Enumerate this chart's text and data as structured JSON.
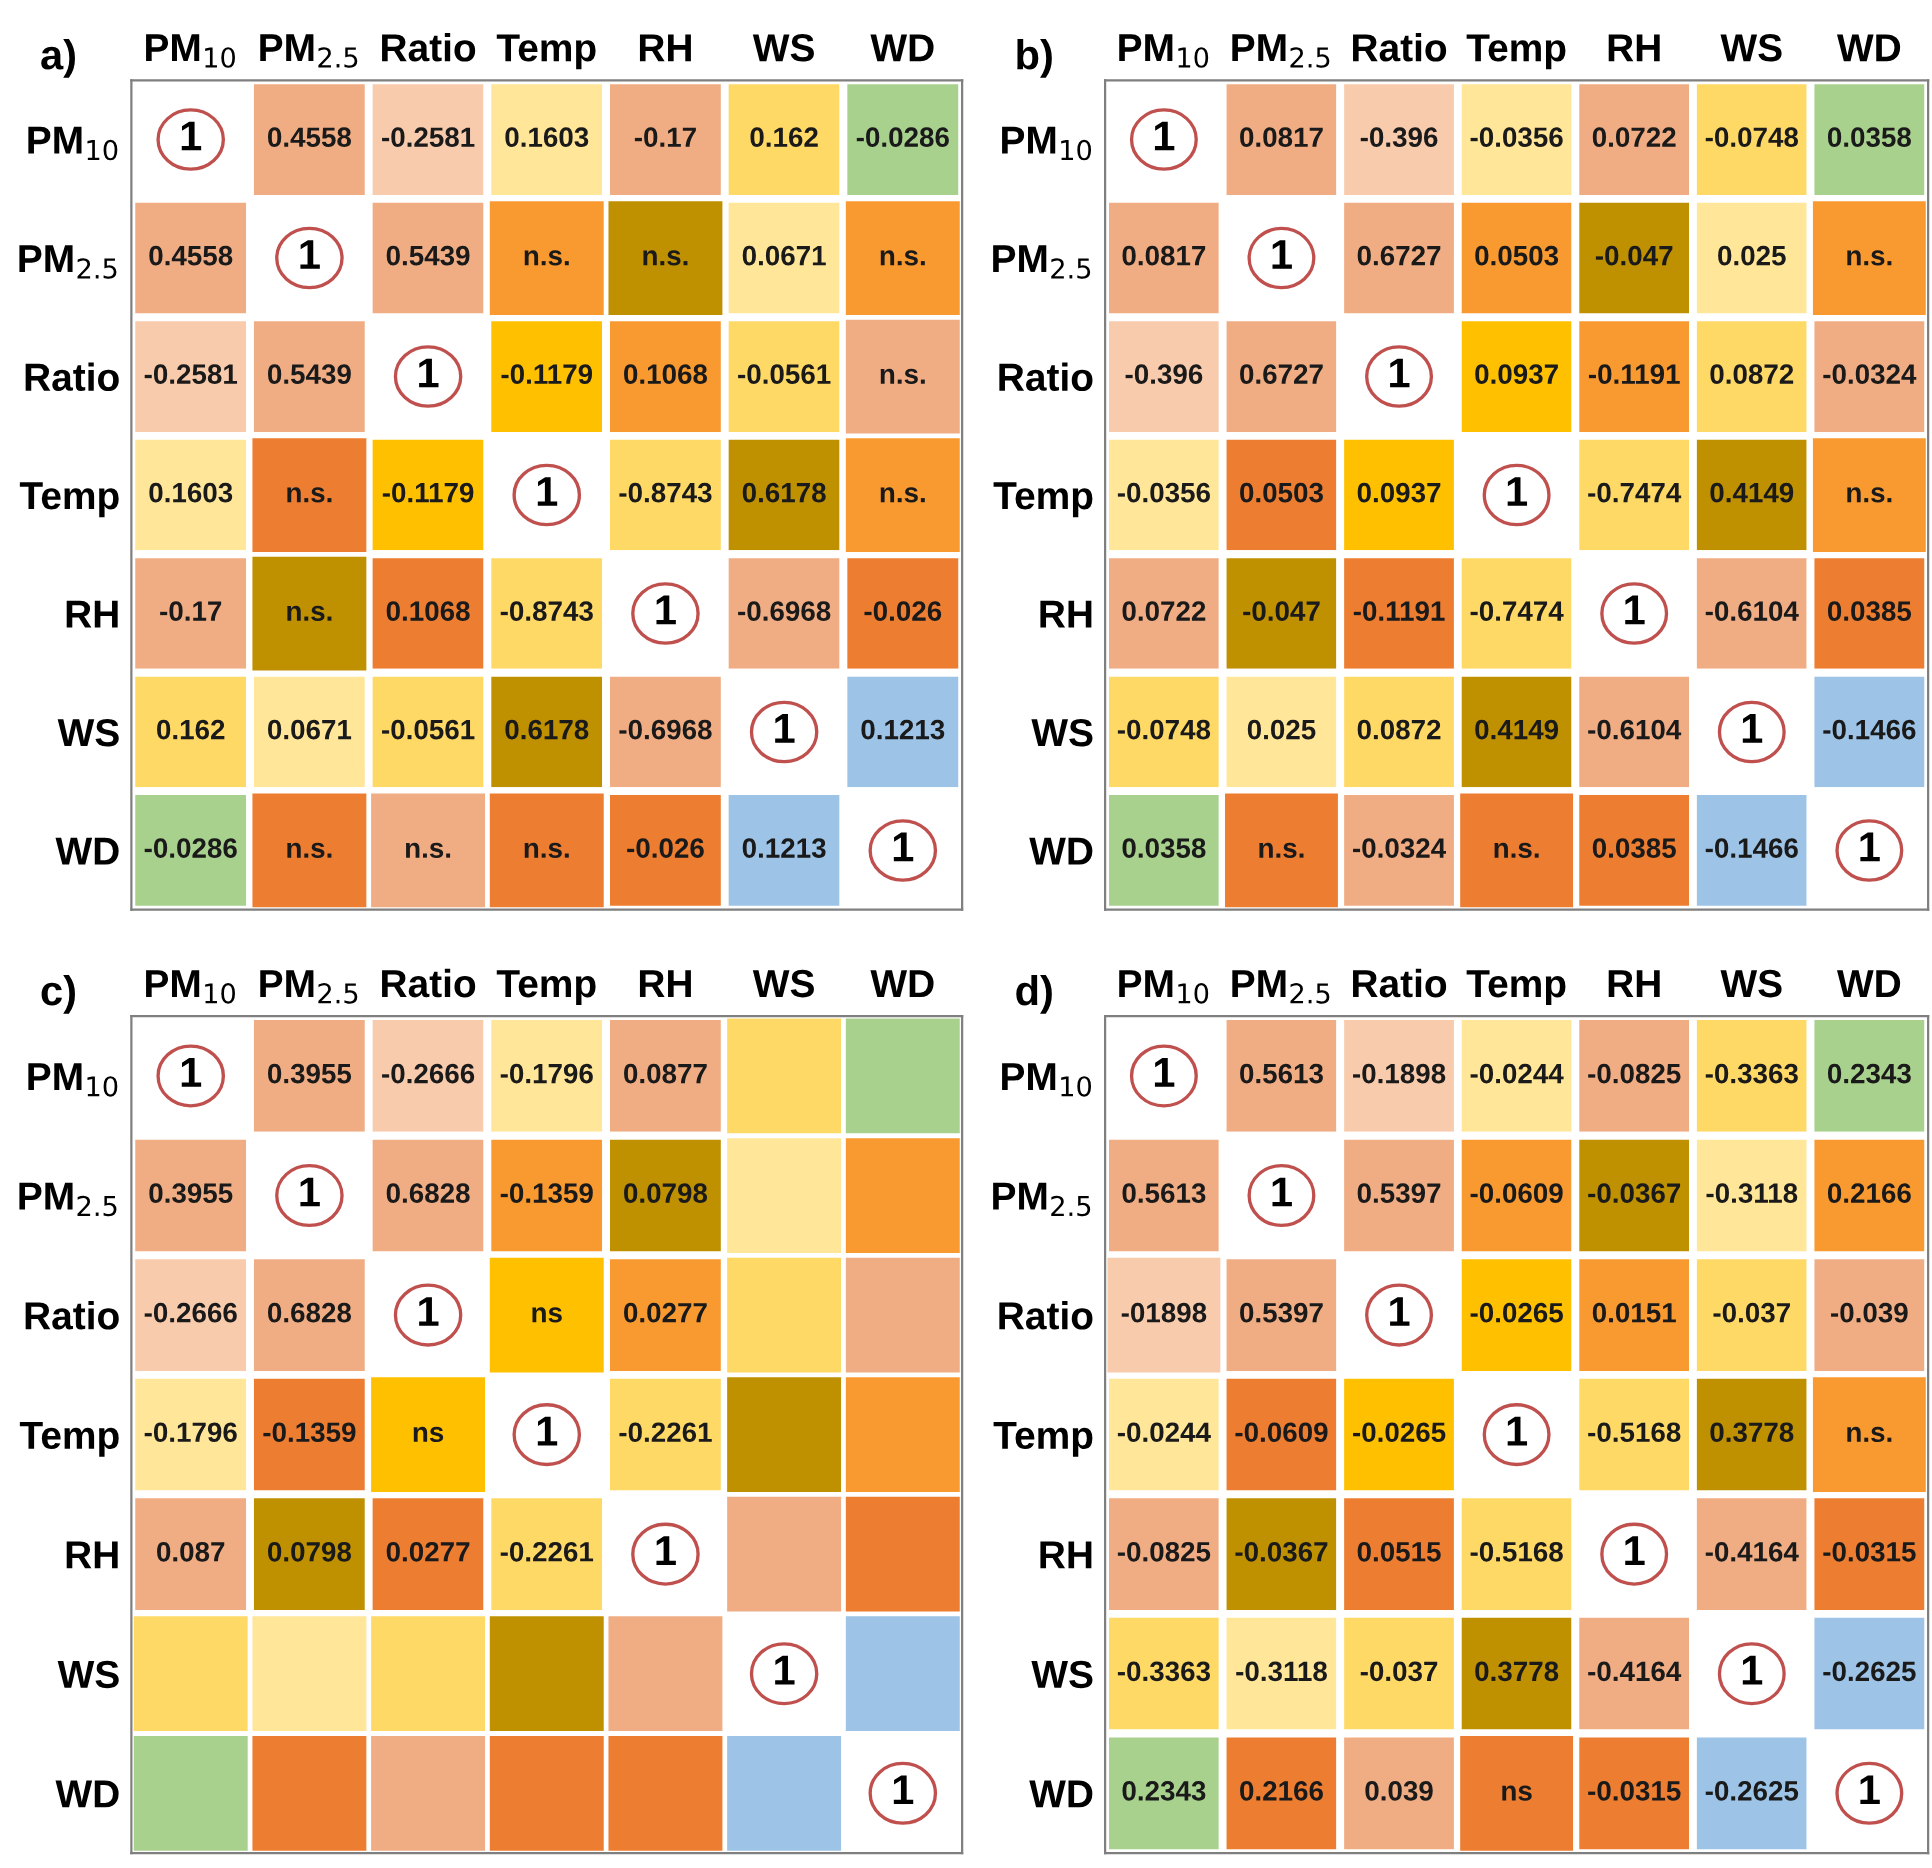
{
  "chart_data": [
    {
      "type": "heatmap",
      "title": "a)",
      "categories": [
        "PM$_{10}$",
        "PM$_{2.5}$",
        "Ratio",
        "Temp",
        "RH",
        "WS",
        "WD"
      ],
      "y_categories": [
        "PM$_{10}$",
        "PM$_{2.5}$",
        "Ratio",
        "Temp",
        "RH",
        "WS",
        "WD"
      ],
      "cells": [
        [
          1,
          0.4558,
          -0.2581,
          0.1603,
          -0.17,
          0.162,
          -0.0286
        ],
        [
          0.4558,
          1,
          0.5439,
          null,
          null,
          0.0671,
          null
        ],
        [
          -0.2581,
          0.5439,
          1,
          -0.1179,
          0.1068,
          -0.0561,
          null
        ],
        [
          0.1603,
          null,
          -0.1179,
          1,
          -0.8743,
          0.6178,
          null
        ],
        [
          -0.17,
          null,
          0.1068,
          -0.8743,
          1,
          -0.6968,
          -0.026
        ],
        [
          0.162,
          0.0671,
          -0.0561,
          0.6178,
          -0.6968,
          1,
          0.1213
        ],
        [
          -0.0286,
          null,
          null,
          null,
          -0.026,
          0.1213,
          1
        ]
      ],
      "cell_labels": [
        [
          "1",
          "0.4558",
          "-0.2581",
          "0.1603",
          "-0.17",
          "0.162",
          "-0.0286"
        ],
        [
          "0.4558",
          "1",
          "0.5439",
          "n.s.",
          "n.s.",
          "0.0671",
          "n.s."
        ],
        [
          "-0.2581",
          "0.5439",
          "1",
          "-0.1179",
          "0.1068",
          "-0.0561",
          "n.s."
        ],
        [
          "0.1603",
          "n.s.",
          "-0.1179",
          "1",
          "-0.8743",
          "0.6178",
          "n.s."
        ],
        [
          "-0.17",
          "n.s.",
          "0.1068",
          "-0.8743",
          "1",
          "-0.6968",
          "-0.026"
        ],
        [
          "0.162",
          "0.0671",
          "-0.0561",
          "0.6178",
          "-0.6968",
          "1",
          "0.1213"
        ],
        [
          "-0.0286",
          "n.s.",
          "n.s.",
          "n.s.",
          "-0.026",
          "0.1213",
          "1"
        ]
      ],
      "colors": [
        [
          null,
          "#f0ad84",
          "#f8cbad",
          "#ffe699",
          "#f0ad84",
          "#ffd966",
          "#a9d18e"
        ],
        [
          "#f0ad84",
          null,
          "#f0ad84",
          "#f99a30",
          "#bf9000",
          "#ffe699",
          "#f99a30"
        ],
        [
          "#f8cbad",
          "#f0ad84",
          null,
          "#ffc000",
          "#f99a30",
          "#ffd966",
          "#f0ad84"
        ],
        [
          "#ffe699",
          "#ed7d31",
          "#ffc000",
          null,
          "#ffd966",
          "#bf9000",
          "#f99a30"
        ],
        [
          "#f0ad84",
          "#bf9000",
          "#ed7d31",
          "#ffd966",
          null,
          "#f0ad84",
          "#ed7d31"
        ],
        [
          "#ffd966",
          "#ffe699",
          "#ffd966",
          "#bf9000",
          "#f0ad84",
          null,
          "#9dc3e6"
        ],
        [
          "#a9d18e",
          "#ed7d31",
          "#f0ad84",
          "#ed7d31",
          "#ed7d31",
          "#9dc3e6",
          null
        ]
      ]
    },
    {
      "type": "heatmap",
      "title": "b)",
      "categories": [
        "PM$_{10}$",
        "PM$_{2.5}$",
        "Ratio",
        "Temp",
        "RH",
        "WS",
        "WD"
      ],
      "y_categories": [
        "PM$_{10}$",
        "PM$_{2.5}$",
        "Ratio",
        "Temp",
        "RH",
        "WS",
        "WD"
      ],
      "cells": [
        [
          1,
          0.0817,
          -0.396,
          -0.0356,
          0.0722,
          -0.0748,
          0.0358
        ],
        [
          0.0817,
          1,
          0.6727,
          0.0503,
          -0.047,
          0.025,
          null
        ],
        [
          -0.396,
          0.6727,
          1,
          0.0937,
          -0.1191,
          0.0872,
          -0.0324
        ],
        [
          -0.0356,
          0.0503,
          0.0937,
          1,
          -0.7474,
          0.4149,
          null
        ],
        [
          0.0722,
          -0.047,
          -0.1191,
          -0.7474,
          1,
          -0.6104,
          0.0385
        ],
        [
          -0.0748,
          0.025,
          0.0872,
          0.4149,
          -0.6104,
          1,
          -0.1466
        ],
        [
          0.0358,
          null,
          -0.0324,
          null,
          0.0385,
          -0.1466,
          1
        ]
      ],
      "cell_labels": [
        [
          "1",
          "0.0817",
          "-0.396",
          "-0.0356",
          "0.0722",
          "-0.0748",
          "0.0358"
        ],
        [
          "0.0817",
          "1",
          "0.6727",
          "0.0503",
          "-0.047",
          "0.025",
          "n.s."
        ],
        [
          "-0.396",
          "0.6727",
          "1",
          "0.0937",
          "-0.1191",
          "0.0872",
          "-0.0324"
        ],
        [
          "-0.0356",
          "0.0503",
          "0.0937",
          "1",
          "-0.7474",
          "0.4149",
          "n.s."
        ],
        [
          "0.0722",
          "-0.047",
          "-0.1191",
          "-0.7474",
          "1",
          "-0.6104",
          "0.0385"
        ],
        [
          "-0.0748",
          "0.025",
          "0.0872",
          "0.4149",
          "-0.6104",
          "1",
          "-0.1466"
        ],
        [
          "0.0358",
          "n.s.",
          "-0.0324",
          "n.s.",
          "0.0385",
          "-0.1466",
          "1"
        ]
      ],
      "colors": [
        [
          null,
          "#f0ad84",
          "#f8cbad",
          "#ffe699",
          "#f0ad84",
          "#ffd966",
          "#a9d18e"
        ],
        [
          "#f0ad84",
          null,
          "#f0ad84",
          "#f99a30",
          "#bf9000",
          "#ffe699",
          "#f99a30"
        ],
        [
          "#f8cbad",
          "#f0ad84",
          null,
          "#ffc000",
          "#f99a30",
          "#ffd966",
          "#f0ad84"
        ],
        [
          "#ffe699",
          "#ed7d31",
          "#ffc000",
          null,
          "#ffd966",
          "#bf9000",
          "#f99a30"
        ],
        [
          "#f0ad84",
          "#bf9000",
          "#ed7d31",
          "#ffd966",
          null,
          "#f0ad84",
          "#ed7d31"
        ],
        [
          "#ffd966",
          "#ffe699",
          "#ffd966",
          "#bf9000",
          "#f0ad84",
          null,
          "#9dc3e6"
        ],
        [
          "#a9d18e",
          "#ed7d31",
          "#f0ad84",
          "#ed7d31",
          "#ed7d31",
          "#9dc3e6",
          null
        ]
      ]
    },
    {
      "type": "heatmap",
      "title": "c)",
      "categories": [
        "PM$_{10}$",
        "PM$_{2.5}$",
        "Ratio",
        "Temp",
        "RH",
        "WS",
        "WD"
      ],
      "y_categories": [
        "PM$_{10}$",
        "PM$_{2.5}$",
        "Ratio",
        "Temp",
        "RH",
        "WS",
        "WD"
      ],
      "cells": [
        [
          1,
          0.3955,
          -0.2666,
          -0.1796,
          0.0877,
          null,
          null
        ],
        [
          0.3955,
          1,
          0.6828,
          -0.1359,
          0.0798,
          null,
          null
        ],
        [
          -0.2666,
          0.6828,
          1,
          null,
          0.0277,
          null,
          null
        ],
        [
          -0.1796,
          -0.1359,
          null,
          1,
          -0.2261,
          null,
          null
        ],
        [
          0.087,
          0.0798,
          0.0277,
          -0.2261,
          1,
          null,
          null
        ],
        [
          null,
          null,
          null,
          null,
          null,
          1,
          null
        ],
        [
          null,
          null,
          null,
          null,
          null,
          null,
          1
        ]
      ],
      "cell_labels": [
        [
          "1",
          "0.3955",
          "-0.2666",
          "-0.1796",
          "0.0877",
          null,
          null
        ],
        [
          "0.3955",
          "1",
          "0.6828",
          "-0.1359",
          "0.0798",
          null,
          null
        ],
        [
          "-0.2666",
          "0.6828",
          "1",
          "ns",
          "0.0277",
          null,
          null
        ],
        [
          "-0.1796",
          "-0.1359",
          "ns",
          "1",
          "-0.2261",
          null,
          null
        ],
        [
          "0.087",
          "0.0798",
          "0.0277",
          "-0.2261",
          "1",
          null,
          null
        ],
        [
          null,
          null,
          null,
          null,
          null,
          "1",
          null
        ],
        [
          null,
          null,
          null,
          null,
          null,
          null,
          "1"
        ]
      ],
      "colors": [
        [
          null,
          "#f0ad84",
          "#f8cbad",
          "#ffe699",
          "#f0ad84",
          "#ffd966",
          "#a9d18e"
        ],
        [
          "#f0ad84",
          null,
          "#f0ad84",
          "#f99a30",
          "#bf9000",
          "#ffe699",
          "#f99a30"
        ],
        [
          "#f8cbad",
          "#f0ad84",
          null,
          "#ffc000",
          "#f99a30",
          "#ffd966",
          "#f0ad84"
        ],
        [
          "#ffe699",
          "#ed7d31",
          "#ffc000",
          null,
          "#ffd966",
          "#bf9000",
          "#f99a30"
        ],
        [
          "#f0ad84",
          "#bf9000",
          "#ed7d31",
          "#ffd966",
          null,
          "#f0ad84",
          "#ed7d31"
        ],
        [
          "#ffd966",
          "#ffe699",
          "#ffd966",
          "#bf9000",
          "#f0ad84",
          null,
          "#9dc3e6"
        ],
        [
          "#a9d18e",
          "#ed7d31",
          "#f0ad84",
          "#ed7d31",
          "#ed7d31",
          "#9dc3e6",
          null
        ]
      ]
    },
    {
      "type": "heatmap",
      "title": "d)",
      "categories": [
        "PM$_{10}$",
        "PM$_{2.5}$",
        "Ratio",
        "Temp",
        "RH",
        "WS",
        "WD"
      ],
      "y_categories": [
        "PM$_{10}$",
        "PM$_{2.5}$",
        "Ratio",
        "Temp",
        "RH",
        "WS",
        "WD"
      ],
      "cells": [
        [
          1,
          0.5613,
          -0.1898,
          -0.0244,
          -0.0825,
          -0.3363,
          0.2343
        ],
        [
          0.5613,
          1,
          0.5397,
          -0.0609,
          -0.0367,
          -0.3118,
          0.2166
        ],
        [
          null,
          0.5397,
          1,
          -0.0265,
          0.0151,
          -0.037,
          -0.039
        ],
        [
          -0.0244,
          -0.0609,
          -0.0265,
          1,
          -0.5168,
          0.3778,
          null
        ],
        [
          -0.0825,
          -0.0367,
          0.0515,
          -0.5168,
          1,
          -0.4164,
          -0.0315
        ],
        [
          -0.3363,
          -0.3118,
          -0.037,
          0.3778,
          -0.4164,
          1,
          -0.2625
        ],
        [
          0.2343,
          0.2166,
          0.039,
          null,
          -0.0315,
          -0.2625,
          1
        ]
      ],
      "cell_labels": [
        [
          "1",
          "0.5613",
          "-0.1898",
          "-0.0244",
          "-0.0825",
          "-0.3363",
          "0.2343"
        ],
        [
          "0.5613",
          "1",
          "0.5397",
          "-0.0609",
          "-0.0367",
          "-0.3118",
          "0.2166"
        ],
        [
          "-01898",
          "0.5397",
          "1",
          "-0.0265",
          "0.0151",
          "-0.037",
          "-0.039"
        ],
        [
          "-0.0244",
          "-0.0609",
          "-0.0265",
          "1",
          "-0.5168",
          "0.3778",
          "n.s."
        ],
        [
          "-0.0825",
          "-0.0367",
          "0.0515",
          "-0.5168",
          "1",
          "-0.4164",
          "-0.0315"
        ],
        [
          "-0.3363",
          "-0.3118",
          "-0.037",
          "0.3778",
          "-0.4164",
          "1",
          "-0.2625"
        ],
        [
          "0.2343",
          "0.2166",
          "0.039",
          "ns",
          "-0.0315",
          "-0.2625",
          "1"
        ]
      ],
      "colors": [
        [
          null,
          "#f0ad84",
          "#f8cbad",
          "#ffe699",
          "#f0ad84",
          "#ffd966",
          "#a9d18e"
        ],
        [
          "#f0ad84",
          null,
          "#f0ad84",
          "#f99a30",
          "#bf9000",
          "#ffe699",
          "#f99a30"
        ],
        [
          "#f8cbad",
          "#f0ad84",
          null,
          "#ffc000",
          "#f99a30",
          "#ffd966",
          "#f0ad84"
        ],
        [
          "#ffe699",
          "#ed7d31",
          "#ffc000",
          null,
          "#ffd966",
          "#bf9000",
          "#f99a30"
        ],
        [
          "#f0ad84",
          "#bf9000",
          "#ed7d31",
          "#ffd966",
          null,
          "#f0ad84",
          "#ed7d31"
        ],
        [
          "#ffd966",
          "#ffe699",
          "#ffd966",
          "#bf9000",
          "#f0ad84",
          null,
          "#9dc3e6"
        ],
        [
          "#a9d18e",
          "#ed7d31",
          "#f0ad84",
          "#ed7d31",
          "#ed7d31",
          "#9dc3e6",
          null
        ]
      ]
    }
  ]
}
